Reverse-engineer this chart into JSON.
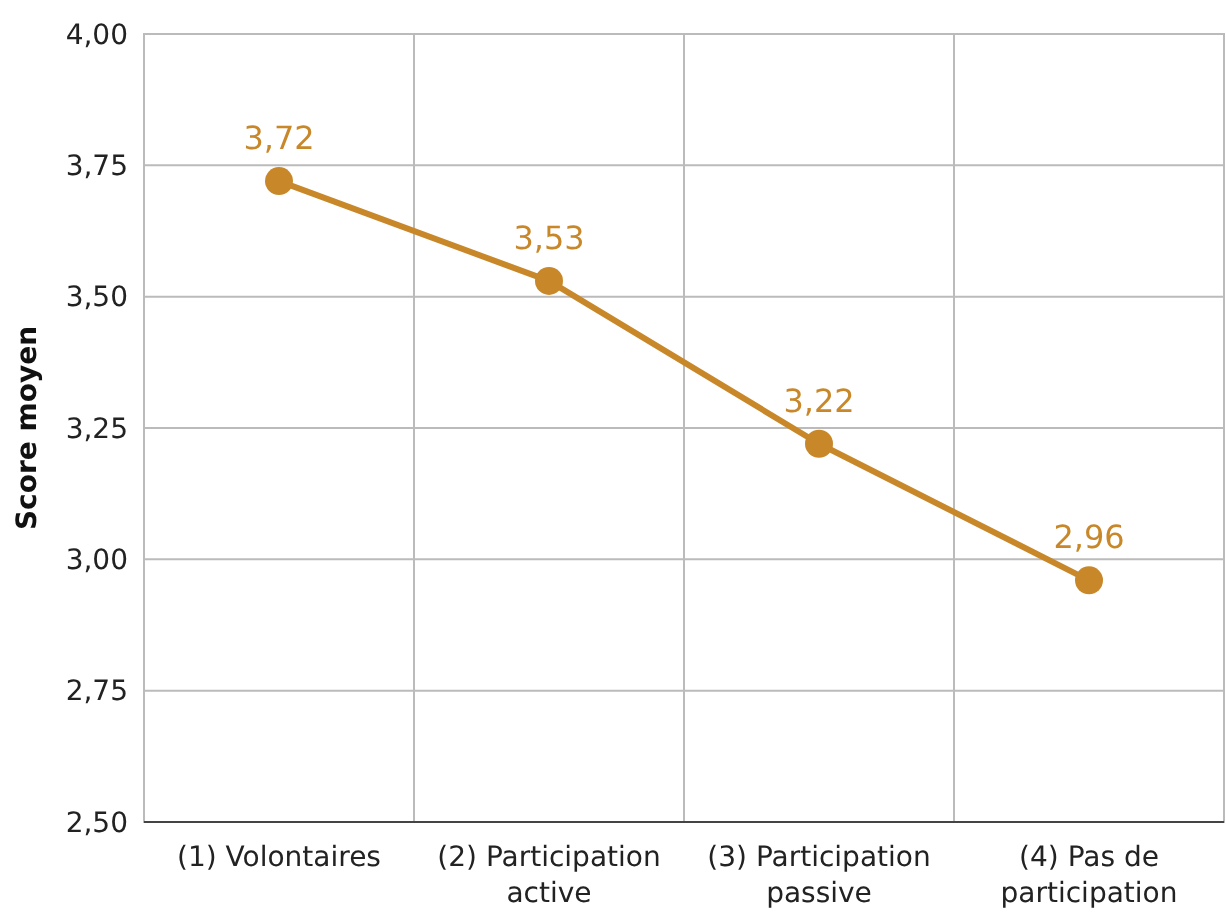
{
  "chart_data": {
    "type": "line",
    "ylabel": "Score moyen",
    "categories": [
      "(1) Volontaires",
      "(2) Participation active",
      "(3) Participation passive",
      "(4) Pas de participation"
    ],
    "series": [
      {
        "color": "#c8882a",
        "values": [
          3.72,
          3.53,
          3.22,
          2.96
        ],
        "value_labels": [
          "3,72",
          "3,53",
          "3,22",
          "2,96"
        ]
      }
    ],
    "ylim": [
      2.5,
      4
    ],
    "yticks": [
      {
        "value": 2.5,
        "label": "2,50"
      },
      {
        "value": 2.75,
        "label": "2,75"
      },
      {
        "value": 3,
        "label": "3,00"
      },
      {
        "value": 3.25,
        "label": "3,25"
      },
      {
        "value": 3.5,
        "label": "3,50"
      },
      {
        "value": 3.75,
        "label": "3,75"
      },
      {
        "value": 4,
        "label": "4,00"
      }
    ],
    "grid": true,
    "marker": "circle",
    "line_style": "solid"
  }
}
